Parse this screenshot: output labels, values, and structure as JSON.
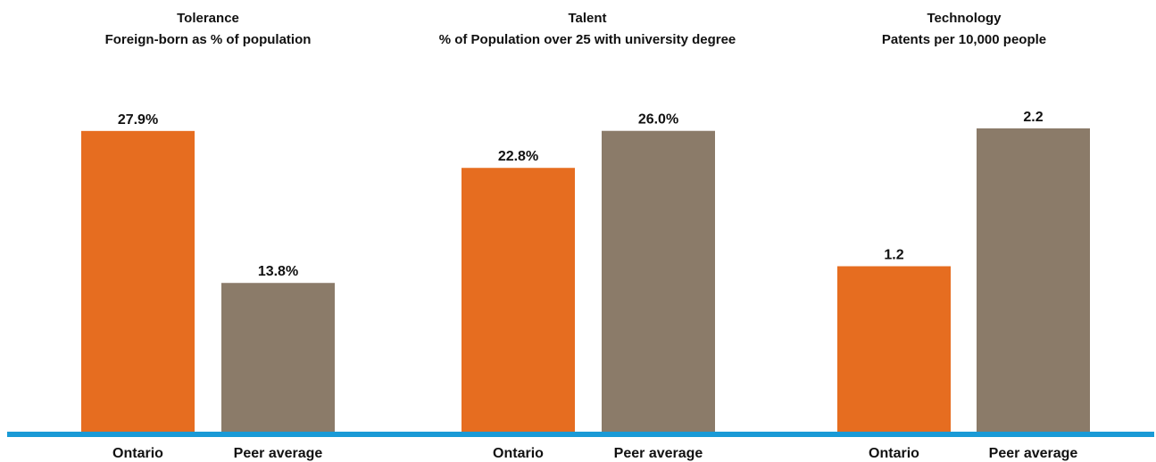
{
  "chart_data": [
    {
      "type": "bar",
      "title": "Tolerance",
      "subtitle": "Foreign-born as % of population",
      "categories": [
        "Ontario",
        "Peer average"
      ],
      "values": [
        27.9,
        13.8
      ],
      "value_labels": [
        "27.9%",
        "13.8%"
      ],
      "ylim": [
        0,
        30.7
      ]
    },
    {
      "type": "bar",
      "title": "Talent",
      "subtitle": "% of Population over 25 with university degree",
      "categories": [
        "Ontario",
        "Peer average"
      ],
      "values": [
        22.8,
        26.0
      ],
      "value_labels": [
        "22.8%",
        "26.0%"
      ],
      "ylim": [
        0,
        28.6
      ]
    },
    {
      "type": "bar",
      "title": "Technology",
      "subtitle": "Patents per 10,000 people",
      "categories": [
        "Ontario",
        "Peer average"
      ],
      "values": [
        1.2,
        2.2
      ],
      "value_labels": [
        "1.2",
        "2.2"
      ],
      "ylim": [
        0,
        2.4
      ]
    }
  ],
  "colors": {
    "ontario": "#E66D20",
    "peer_average": "#8B7B69",
    "baseline": "#1A9AD6",
    "text": "#111111"
  }
}
